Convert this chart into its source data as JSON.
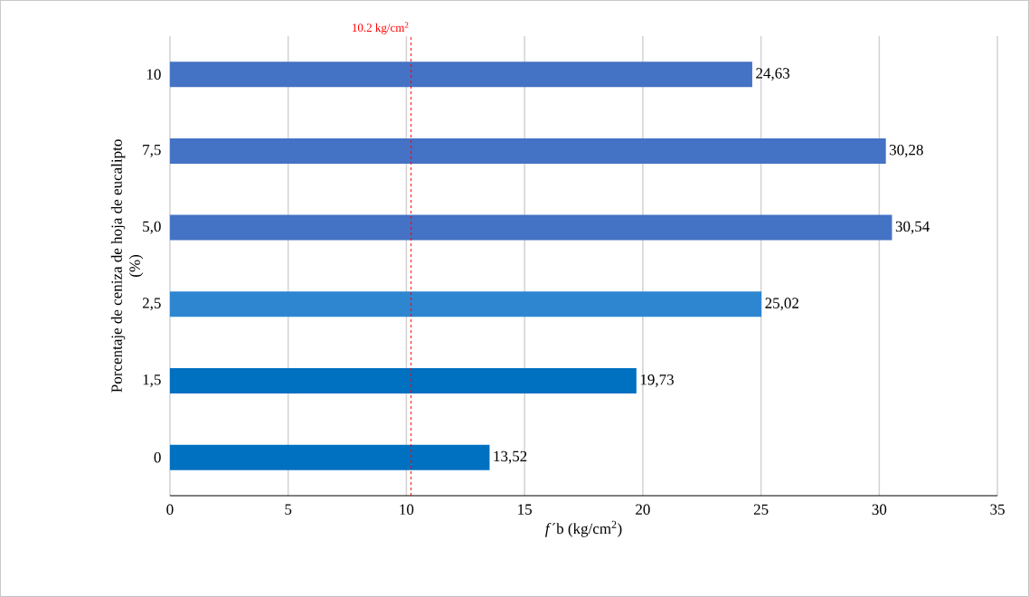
{
  "chart_data": {
    "type": "bar",
    "orientation": "horizontal",
    "xlabel": "*f*´b (kg/cm$^{2}$)",
    "ylabel": "Porcentaje de ceniza de hoja de eucalipto (%)",
    "categories": [
      "10",
      "7,5",
      "5,0",
      "2,5",
      "1,5",
      "0"
    ],
    "values": [
      24.63,
      30.28,
      30.54,
      25.02,
      19.73,
      13.52
    ],
    "value_labels": [
      "24,63",
      "30,28",
      "30,54",
      "25,02",
      "19,73",
      "13,52"
    ],
    "colors": [
      "#4472c4",
      "#4472c4",
      "#4472c4",
      "#2e86d0",
      "#0070c0",
      "#0070c0"
    ],
    "xlim": [
      0,
      35
    ],
    "xticks": [
      0,
      5,
      10,
      15,
      20,
      25,
      30,
      35
    ],
    "grid": "x",
    "ref_lines": [
      {
        "axis": "x",
        "value": 10.2,
        "label": "10.2 kg/cm$^{2}$",
        "color": "#ff0000",
        "line_style": "dashed"
      }
    ]
  }
}
